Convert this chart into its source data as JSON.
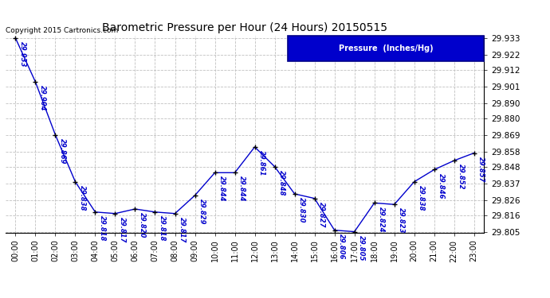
{
  "title": "Barometric Pressure per Hour (24 Hours) 20150515",
  "copyright": "Copyright 2015 Cartronics.com",
  "legend_label": "Pressure  (Inches/Hg)",
  "hours": [
    0,
    1,
    2,
    3,
    4,
    5,
    6,
    7,
    8,
    9,
    10,
    11,
    12,
    13,
    14,
    15,
    16,
    17,
    18,
    19,
    20,
    21,
    22,
    23
  ],
  "pressure": [
    29.933,
    29.904,
    29.869,
    29.838,
    29.818,
    29.817,
    29.82,
    29.818,
    29.817,
    29.829,
    29.844,
    29.844,
    29.861,
    29.848,
    29.83,
    29.827,
    29.806,
    29.805,
    29.824,
    29.823,
    29.838,
    29.846,
    29.852,
    29.857
  ],
  "ylim_min": 29.8045,
  "ylim_max": 29.9345,
  "line_color": "#0000cc",
  "marker_color": "#000000",
  "bg_color": "#ffffff",
  "grid_color": "#c0c0c0",
  "title_color": "#000000",
  "label_color": "#0000cc",
  "ytick_labels": [
    29.805,
    29.816,
    29.826,
    29.837,
    29.848,
    29.858,
    29.869,
    29.88,
    29.89,
    29.901,
    29.912,
    29.922,
    29.933
  ]
}
